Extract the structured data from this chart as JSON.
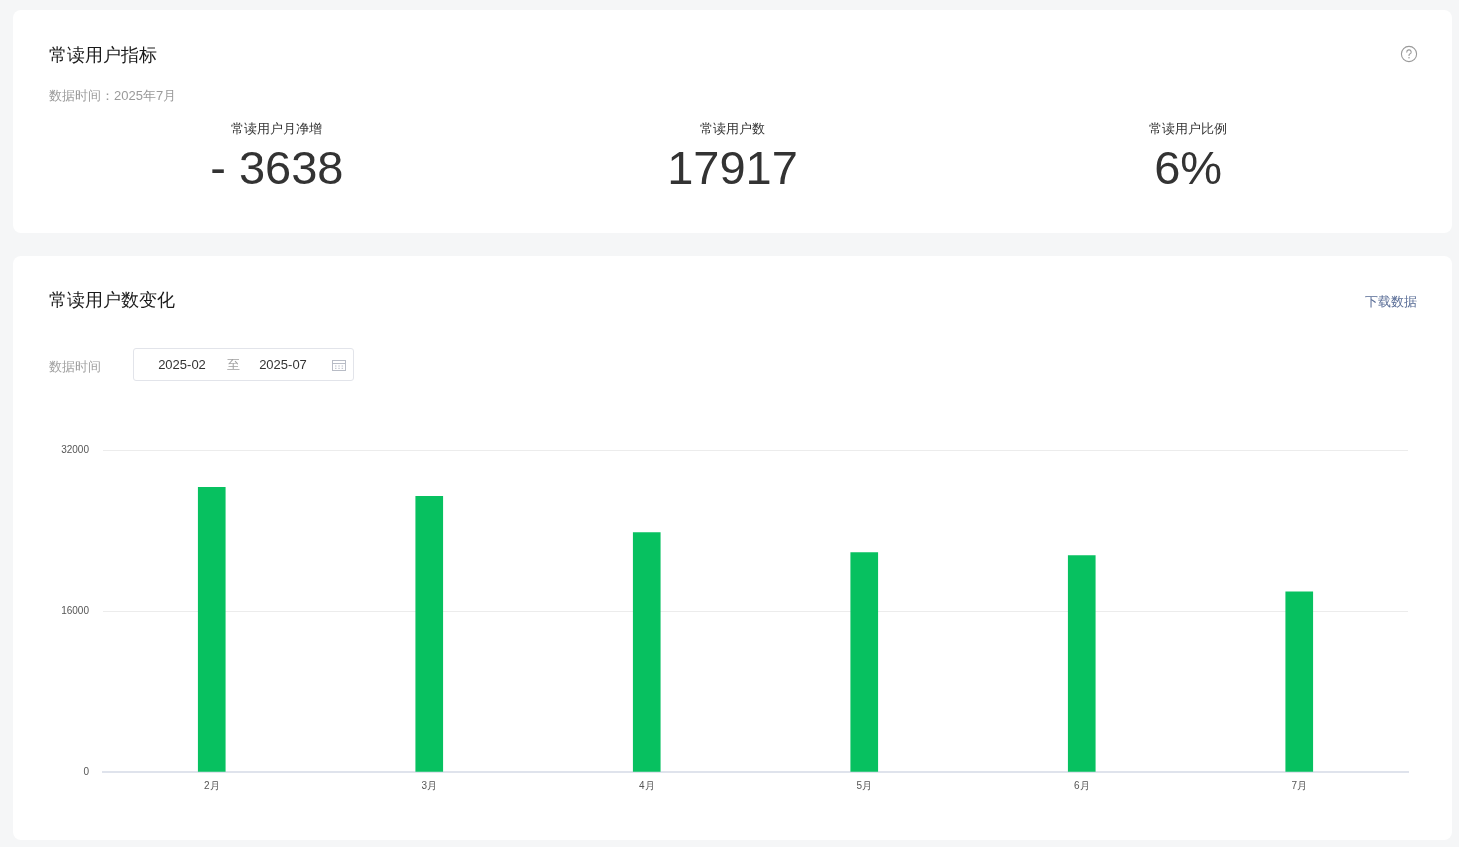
{
  "chart_data": [
    {
      "type": "other",
      "title": "常读用户指标",
      "subtitle": "数据时间：2025年7月",
      "annotations": [
        "常读用户月净增",
        "- 3638",
        "常读用户数",
        "17917",
        "常读用户比例",
        "6%"
      ]
    },
    {
      "type": "bar",
      "title": "常读用户数变化",
      "annotations": [
        "下载数据",
        "数据时间",
        "2025-02",
        "至",
        "2025-07"
      ],
      "categories": [
        "2月",
        "3月",
        "4月",
        "5月",
        "6月",
        "7月"
      ],
      "values": [
        28300,
        27400,
        23800,
        21800,
        21500,
        17900
      ],
      "color": "#07c160",
      "ylim": [
        0,
        32000
      ],
      "yticks": [
        0,
        16000,
        32000
      ],
      "grid": "y"
    }
  ]
}
